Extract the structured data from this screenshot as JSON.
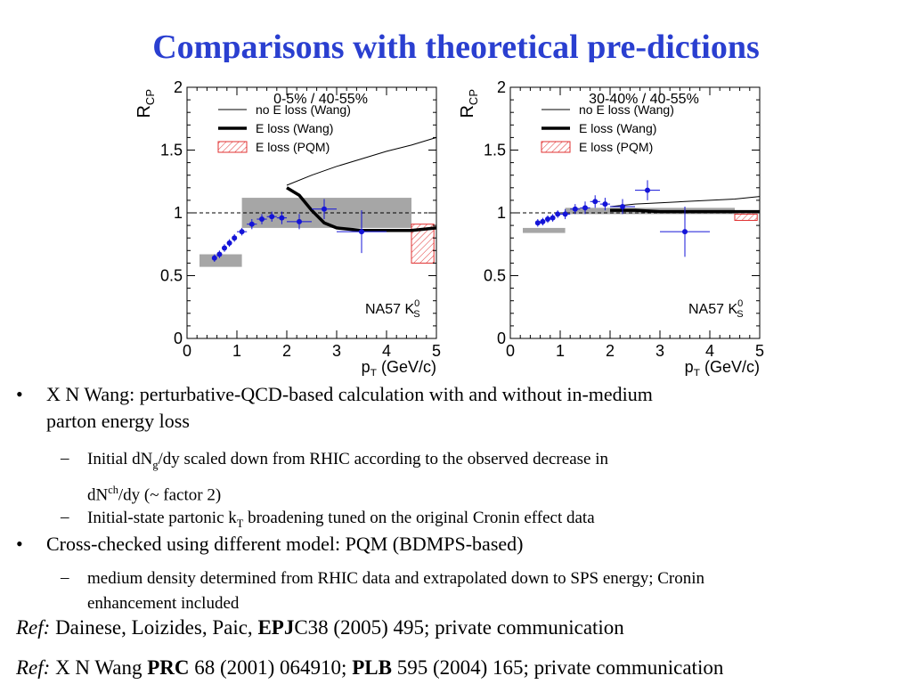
{
  "title": "Comparisons with theoretical pre-dictions",
  "chart_data": [
    {
      "type": "scatter",
      "panel_label": "0-5% / 40-55%",
      "ylabel": "R_CP",
      "ylabel_main": "R",
      "ylabel_sub": "CP",
      "xlabel": "p_T (GeV/c)",
      "xlabel_main": "p",
      "xlabel_sub": "T",
      "xlabel_rest": " (GeV/c)",
      "xlim": [
        0,
        5
      ],
      "ylim": [
        0,
        2
      ],
      "x_ticks": [
        "0",
        "1",
        "2",
        "3",
        "4",
        "5"
      ],
      "y_ticks": [
        "0",
        "0.5",
        "1",
        "1.5",
        "2"
      ],
      "reference_line": 1,
      "annotation": "NA57 K",
      "annotation_sub": "S",
      "annotation_sup": "0",
      "legend": [
        "no E loss (Wang)",
        "E loss (Wang)",
        "E loss (PQM)"
      ],
      "legend_position": "top-right",
      "series": [
        {
          "name": "NA57 K0S",
          "points": [
            {
              "x": 0.55,
              "y": 0.64
            },
            {
              "x": 0.65,
              "y": 0.67
            },
            {
              "x": 0.75,
              "y": 0.72
            },
            {
              "x": 0.85,
              "y": 0.76
            },
            {
              "x": 0.95,
              "y": 0.8
            },
            {
              "x": 1.1,
              "y": 0.85
            },
            {
              "x": 1.3,
              "y": 0.91
            },
            {
              "x": 1.5,
              "y": 0.95
            },
            {
              "x": 1.7,
              "y": 0.97
            },
            {
              "x": 1.9,
              "y": 0.96
            },
            {
              "x": 2.25,
              "y": 0.93
            },
            {
              "x": 2.75,
              "y": 1.03
            },
            {
              "x": 3.5,
              "y": 0.85
            }
          ],
          "x_err": [
            0.05,
            0.05,
            0.05,
            0.05,
            0.05,
            0.1,
            0.1,
            0.1,
            0.1,
            0.1,
            0.25,
            0.25,
            0.5
          ],
          "y_err": [
            0.03,
            0.03,
            0.03,
            0.03,
            0.03,
            0.03,
            0.04,
            0.04,
            0.04,
            0.05,
            0.06,
            0.08,
            0.17
          ]
        },
        {
          "name": "no E loss (Wang)",
          "x": [
            2.0,
            2.5,
            3.0,
            3.5,
            4.0,
            4.5,
            5.0
          ],
          "y": [
            1.22,
            1.3,
            1.37,
            1.43,
            1.49,
            1.54,
            1.6
          ]
        },
        {
          "name": "E loss (Wang)",
          "x": [
            2.0,
            2.25,
            2.5,
            2.75,
            3.0,
            3.5,
            4.0,
            4.5,
            5.0
          ],
          "y": [
            1.2,
            1.14,
            1.02,
            0.92,
            0.88,
            0.86,
            0.86,
            0.86,
            0.88
          ]
        }
      ],
      "systematic_boxes": [
        {
          "x0": 0.25,
          "x1": 1.1,
          "y0": 0.57,
          "y1": 0.67,
          "kind": "gray"
        },
        {
          "x0": 1.1,
          "x1": 4.5,
          "y0": 0.88,
          "y1": 1.12,
          "kind": "gray"
        },
        {
          "x0": 4.5,
          "x1": 4.95,
          "y0": 0.6,
          "y1": 0.91,
          "kind": "pqm"
        }
      ]
    },
    {
      "type": "scatter",
      "panel_label": "30-40% / 40-55%",
      "ylabel": "R_CP",
      "ylabel_main": "R",
      "ylabel_sub": "CP",
      "xlabel": "p_T (GeV/c)",
      "xlabel_main": "p",
      "xlabel_sub": "T",
      "xlabel_rest": " (GeV/c)",
      "xlim": [
        0,
        5
      ],
      "ylim": [
        0,
        2
      ],
      "x_ticks": [
        "0",
        "1",
        "2",
        "3",
        "4",
        "5"
      ],
      "y_ticks": [
        "0",
        "0.5",
        "1",
        "1.5",
        "2"
      ],
      "reference_line": 1,
      "annotation": "NA57 K",
      "annotation_sub": "S",
      "annotation_sup": "0",
      "legend": [
        "no E loss (Wang)",
        "E loss (Wang)",
        "E loss (PQM)"
      ],
      "legend_position": "top-right",
      "series": [
        {
          "name": "NA57 K0S",
          "points": [
            {
              "x": 0.55,
              "y": 0.92
            },
            {
              "x": 0.65,
              "y": 0.93
            },
            {
              "x": 0.75,
              "y": 0.95
            },
            {
              "x": 0.85,
              "y": 0.96
            },
            {
              "x": 0.95,
              "y": 0.99
            },
            {
              "x": 1.1,
              "y": 0.99
            },
            {
              "x": 1.3,
              "y": 1.03
            },
            {
              "x": 1.5,
              "y": 1.04
            },
            {
              "x": 1.7,
              "y": 1.09
            },
            {
              "x": 1.9,
              "y": 1.07
            },
            {
              "x": 2.25,
              "y": 1.05
            },
            {
              "x": 2.75,
              "y": 1.18
            },
            {
              "x": 3.5,
              "y": 0.85
            }
          ],
          "x_err": [
            0.05,
            0.05,
            0.05,
            0.05,
            0.05,
            0.1,
            0.1,
            0.1,
            0.1,
            0.1,
            0.25,
            0.25,
            0.5
          ],
          "y_err": [
            0.03,
            0.03,
            0.03,
            0.03,
            0.03,
            0.04,
            0.04,
            0.05,
            0.05,
            0.05,
            0.06,
            0.08,
            0.2
          ]
        },
        {
          "name": "no E loss (Wang)",
          "x": [
            2.0,
            2.5,
            3.0,
            3.5,
            4.0,
            4.5,
            5.0
          ],
          "y": [
            1.05,
            1.07,
            1.08,
            1.09,
            1.1,
            1.11,
            1.13
          ]
        },
        {
          "name": "E loss (Wang)",
          "x": [
            2.0,
            2.5,
            3.0,
            3.5,
            4.0,
            4.5,
            5.0
          ],
          "y": [
            1.02,
            1.02,
            1.01,
            1.01,
            1.01,
            1.01,
            1.01
          ]
        }
      ],
      "systematic_boxes": [
        {
          "x0": 0.25,
          "x1": 1.1,
          "y0": 0.84,
          "y1": 0.88,
          "kind": "gray"
        },
        {
          "x0": 1.1,
          "x1": 4.5,
          "y0": 0.99,
          "y1": 1.04,
          "kind": "gray"
        },
        {
          "x0": 4.5,
          "x1": 4.95,
          "y0": 0.94,
          "y1": 0.99,
          "kind": "pqm"
        }
      ]
    }
  ],
  "bullets": {
    "b1_text": "X N Wang: perturbative-QCD-based calculation with and without in-medium",
    "b1_text2": "parton energy loss",
    "s1_a": "Initial dN",
    "s1_sub": "g",
    "s1_b": "/dy scaled down from RHIC according to the observed decrease in",
    "s1_c": "dN",
    "s1_sup": "ch",
    "s1_d": "/dy  (~ factor 2)",
    "s2_a": "Initial-state partonic k",
    "s2_sub": "T",
    "s2_b": " broadening tuned on the original Cronin effect data",
    "b2_text": "Cross-checked using different model: PQM (BDMPS-based)",
    "s3_text": "medium density determined from RHIC data and extrapolated down to SPS energy; Cronin",
    "s3_text2": "enhancement included",
    "bullet_char": "•",
    "dash_char": "–"
  },
  "refs": {
    "r1_label": "Ref:",
    "r1_a": " Dainese, Loizides, Paic, ",
    "r1_bold": "EPJ",
    "r1_b": "C38 (2005) 495; private communication",
    "r2_label": "Ref:",
    "r2_a": " X N Wang ",
    "r2_bold1": "PRC",
    "r2_b": " 68 (2001) 064910; ",
    "r2_bold2": "PLB",
    "r2_c": " 595 (2004) 165; private communication"
  },
  "colors": {
    "title": "#2a3fd0",
    "points": "#1414d8",
    "systematic_gray": "#a6a6a6",
    "pqm_red": "#e03030"
  }
}
